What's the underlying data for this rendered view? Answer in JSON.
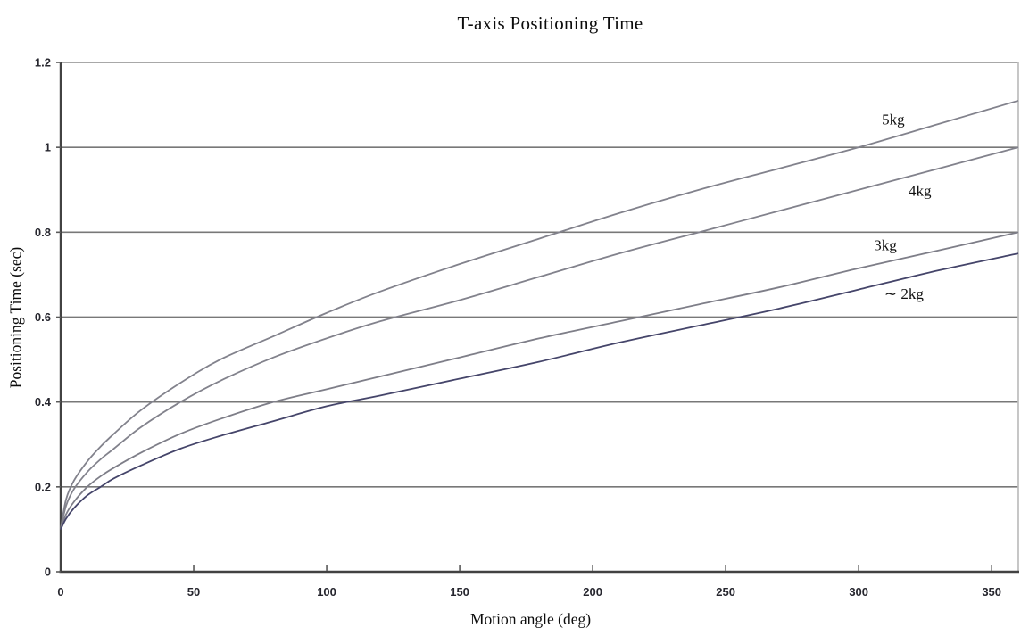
{
  "chart_data": {
    "type": "line",
    "title": "T-axis Positioning Time",
    "xlabel": "Motion angle (deg)",
    "ylabel": "Positioning Time (sec)",
    "xlim": [
      0,
      360
    ],
    "ylim": [
      0,
      1.2
    ],
    "x_ticks": [
      0,
      50,
      100,
      150,
      200,
      250,
      300,
      350
    ],
    "y_ticks": [
      0,
      0.2,
      0.4,
      0.6,
      0.8,
      1,
      1.2
    ],
    "y_tick_labels": [
      "0",
      "0.2",
      "0.4",
      "0.6",
      "0.8",
      "1",
      "1.2"
    ],
    "grid": "horizontal-only",
    "legend_position": "inline-labels-right",
    "colors": {
      "grid": "#787878",
      "axis_dark": "#424242",
      "axis_top": "#9c9c9c",
      "axis_right": "#bdbdbd",
      "tick_label": "#26262e",
      "series_gray": "#82828c",
      "series_dark": "#45456a"
    },
    "series": [
      {
        "name": "5kg",
        "label": "5kg",
        "color": "#82828c",
        "label_at": {
          "x": 313,
          "y": 1.066
        },
        "points": [
          [
            0,
            0.1
          ],
          [
            2,
            0.17
          ],
          [
            5,
            0.215
          ],
          [
            10,
            0.26
          ],
          [
            15,
            0.295
          ],
          [
            20,
            0.325
          ],
          [
            30,
            0.38
          ],
          [
            45,
            0.445
          ],
          [
            60,
            0.5
          ],
          [
            80,
            0.555
          ],
          [
            100,
            0.61
          ],
          [
            120,
            0.66
          ],
          [
            150,
            0.725
          ],
          [
            180,
            0.785
          ],
          [
            210,
            0.845
          ],
          [
            240,
            0.9
          ],
          [
            270,
            0.95
          ],
          [
            300,
            1.0
          ],
          [
            330,
            1.055
          ],
          [
            360,
            1.11
          ]
        ]
      },
      {
        "name": "4kg",
        "label": "4kg",
        "color": "#82828c",
        "label_at": {
          "x": 323,
          "y": 0.897
        },
        "points": [
          [
            0,
            0.1
          ],
          [
            2,
            0.155
          ],
          [
            5,
            0.195
          ],
          [
            10,
            0.235
          ],
          [
            15,
            0.265
          ],
          [
            20,
            0.29
          ],
          [
            30,
            0.34
          ],
          [
            45,
            0.4
          ],
          [
            60,
            0.45
          ],
          [
            80,
            0.505
          ],
          [
            100,
            0.55
          ],
          [
            120,
            0.59
          ],
          [
            150,
            0.64
          ],
          [
            180,
            0.695
          ],
          [
            210,
            0.75
          ],
          [
            240,
            0.8
          ],
          [
            270,
            0.85
          ],
          [
            300,
            0.9
          ],
          [
            330,
            0.95
          ],
          [
            360,
            1.0
          ]
        ]
      },
      {
        "name": "3kg",
        "label": "3kg",
        "color": "#7e7e88",
        "label_at": {
          "x": 310,
          "y": 0.769
        },
        "points": [
          [
            0,
            0.1
          ],
          [
            2,
            0.135
          ],
          [
            5,
            0.165
          ],
          [
            10,
            0.2
          ],
          [
            15,
            0.225
          ],
          [
            20,
            0.245
          ],
          [
            30,
            0.28
          ],
          [
            45,
            0.325
          ],
          [
            60,
            0.36
          ],
          [
            80,
            0.4
          ],
          [
            100,
            0.43
          ],
          [
            120,
            0.46
          ],
          [
            150,
            0.505
          ],
          [
            180,
            0.55
          ],
          [
            210,
            0.59
          ],
          [
            240,
            0.63
          ],
          [
            270,
            0.67
          ],
          [
            300,
            0.715
          ],
          [
            330,
            0.757
          ],
          [
            360,
            0.8
          ]
        ]
      },
      {
        "name": "2kg",
        "label": "∼ 2kg",
        "color": "#45456a",
        "label_at": {
          "x": 317,
          "y": 0.655
        },
        "points": [
          [
            0,
            0.1
          ],
          [
            2,
            0.125
          ],
          [
            5,
            0.15
          ],
          [
            10,
            0.18
          ],
          [
            15,
            0.2
          ],
          [
            20,
            0.22
          ],
          [
            30,
            0.25
          ],
          [
            45,
            0.29
          ],
          [
            60,
            0.32
          ],
          [
            80,
            0.355
          ],
          [
            100,
            0.39
          ],
          [
            120,
            0.415
          ],
          [
            150,
            0.455
          ],
          [
            180,
            0.495
          ],
          [
            210,
            0.54
          ],
          [
            240,
            0.58
          ],
          [
            270,
            0.62
          ],
          [
            300,
            0.665
          ],
          [
            330,
            0.71
          ],
          [
            360,
            0.75
          ]
        ]
      }
    ]
  }
}
